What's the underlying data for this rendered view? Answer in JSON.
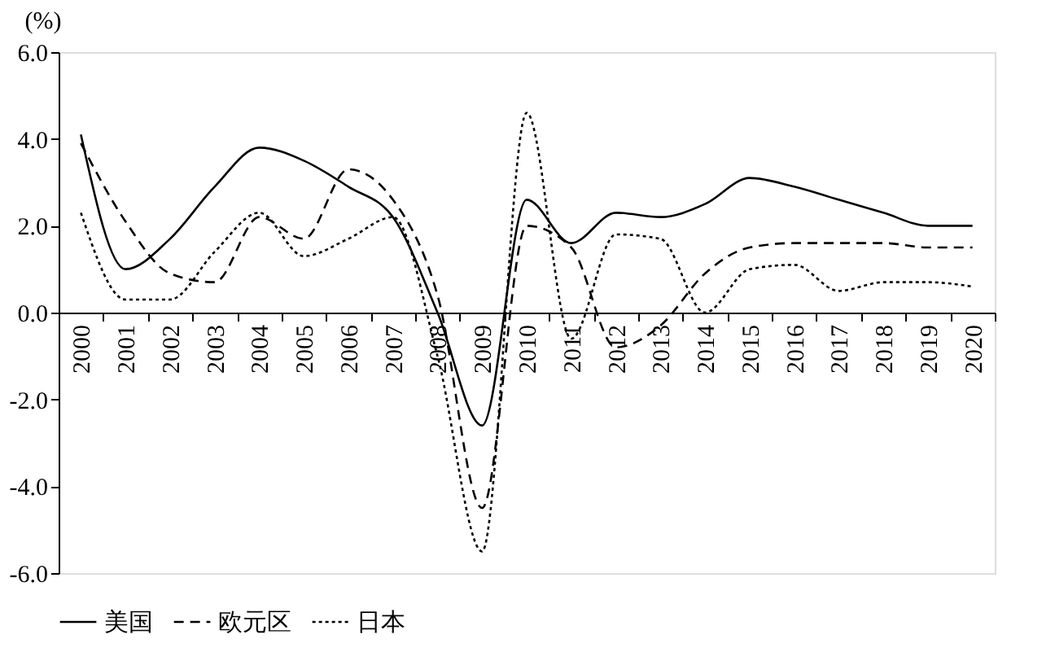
{
  "chart_data": {
    "type": "line",
    "ylabel": "(%)",
    "categories": [
      "2000",
      "2001",
      "2002",
      "2003",
      "2004",
      "2005",
      "2006",
      "2007",
      "2008",
      "2009",
      "2010",
      "2011",
      "2012",
      "2013",
      "2014",
      "2015",
      "2016",
      "2017",
      "2018",
      "2019",
      "2020"
    ],
    "series": [
      {
        "name": "美国",
        "color": "#000000",
        "line_style": "solid",
        "values": [
          4.1,
          1.0,
          1.7,
          2.9,
          3.8,
          3.5,
          2.9,
          2.2,
          0.0,
          -2.6,
          2.6,
          1.6,
          2.3,
          2.2,
          2.5,
          3.1,
          2.9,
          2.6,
          2.3,
          2.0,
          2.0
        ]
      },
      {
        "name": "欧元区",
        "color": "#000000",
        "line_style": "dashed",
        "values": [
          3.9,
          2.1,
          0.9,
          0.7,
          2.2,
          1.7,
          3.3,
          2.6,
          0.4,
          -4.5,
          2.0,
          1.5,
          -0.8,
          -0.3,
          0.9,
          1.5,
          1.6,
          1.6,
          1.6,
          1.5,
          1.5
        ]
      },
      {
        "name": "日本",
        "color": "#000000",
        "line_style": "dotted",
        "values": [
          2.3,
          0.3,
          0.3,
          1.4,
          2.3,
          1.3,
          1.7,
          2.2,
          -1.0,
          -5.5,
          4.6,
          -0.6,
          1.8,
          1.7,
          0.0,
          1.0,
          1.1,
          0.5,
          0.7,
          0.7,
          0.6
        ]
      }
    ],
    "ylim": [
      -6,
      6
    ],
    "yticks": [
      {
        "value": -6,
        "label": "-6.0"
      },
      {
        "value": -4,
        "label": "-4.0"
      },
      {
        "value": -2,
        "label": "-2.0"
      },
      {
        "value": 0,
        "label": "0.0"
      },
      {
        "value": 2,
        "label": "2.0"
      },
      {
        "value": 4,
        "label": "4.0"
      },
      {
        "value": 6,
        "label": "6.0"
      }
    ],
    "grid": false,
    "legend": "bottom",
    "marker": "none"
  }
}
